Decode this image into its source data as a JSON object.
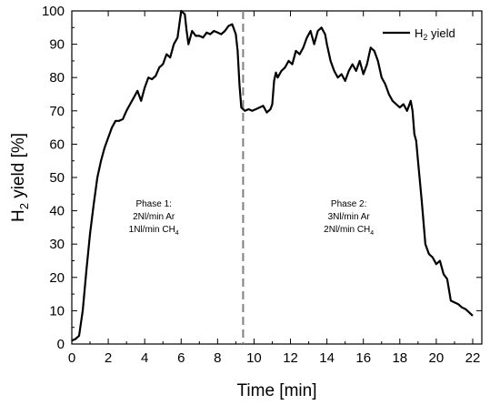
{
  "chart_data": {
    "type": "line",
    "xlabel": "Time [min]",
    "ylabel_main": "H",
    "ylabel_sub": "2",
    "ylabel_rest": " yield [%]",
    "xlim": [
      0,
      22.5
    ],
    "ylim": [
      0,
      100
    ],
    "xticks": [
      0,
      2,
      4,
      6,
      8,
      10,
      12,
      14,
      16,
      18,
      20,
      22
    ],
    "yticks": [
      0,
      10,
      20,
      30,
      40,
      50,
      60,
      70,
      80,
      90,
      100
    ],
    "grid": false,
    "legend": {
      "placement": "top-right",
      "entries": [
        {
          "main": "H",
          "sub": "2",
          "rest": " yield"
        }
      ]
    },
    "divider": {
      "x": 9.4,
      "style": "dashed",
      "color": "#808080"
    },
    "annotations": [
      {
        "x": 4.5,
        "y": 38,
        "lines": [
          {
            "main": "Phase 1:",
            "sub": "",
            "rest": ""
          },
          {
            "main": "2Nl/min Ar",
            "sub": "",
            "rest": ""
          },
          {
            "main": "1Nl/min CH",
            "sub": "4",
            "rest": ""
          }
        ]
      },
      {
        "x": 15.2,
        "y": 38,
        "lines": [
          {
            "main": "Phase 2:",
            "sub": "",
            "rest": ""
          },
          {
            "main": "3Nl/min Ar",
            "sub": "",
            "rest": ""
          },
          {
            "main": "2Nl/min CH",
            "sub": "4",
            "rest": ""
          }
        ]
      }
    ],
    "series": [
      {
        "name": "H2 yield",
        "color": "#000000",
        "points": [
          [
            0.0,
            1.0
          ],
          [
            0.2,
            1.5
          ],
          [
            0.4,
            2.5
          ],
          [
            0.6,
            10
          ],
          [
            0.8,
            22
          ],
          [
            1.0,
            33
          ],
          [
            1.2,
            42
          ],
          [
            1.4,
            50
          ],
          [
            1.6,
            55
          ],
          [
            1.8,
            59
          ],
          [
            2.0,
            62
          ],
          [
            2.2,
            65
          ],
          [
            2.4,
            67
          ],
          [
            2.6,
            67
          ],
          [
            2.8,
            67.5
          ],
          [
            3.0,
            70
          ],
          [
            3.2,
            72
          ],
          [
            3.4,
            74
          ],
          [
            3.6,
            76
          ],
          [
            3.8,
            73
          ],
          [
            4.0,
            77
          ],
          [
            4.2,
            80
          ],
          [
            4.4,
            79.5
          ],
          [
            4.6,
            80.5
          ],
          [
            4.8,
            83
          ],
          [
            5.0,
            84
          ],
          [
            5.2,
            87
          ],
          [
            5.4,
            86
          ],
          [
            5.6,
            90
          ],
          [
            5.8,
            92
          ],
          [
            6.0,
            100
          ],
          [
            6.2,
            99
          ],
          [
            6.3,
            94
          ],
          [
            6.4,
            90
          ],
          [
            6.6,
            94
          ],
          [
            6.8,
            92.5
          ],
          [
            7.0,
            92.5
          ],
          [
            7.2,
            92
          ],
          [
            7.4,
            93.5
          ],
          [
            7.6,
            93
          ],
          [
            7.8,
            94
          ],
          [
            8.0,
            93.5
          ],
          [
            8.2,
            93
          ],
          [
            8.4,
            94
          ],
          [
            8.6,
            95.5
          ],
          [
            8.8,
            96
          ],
          [
            9.0,
            93
          ],
          [
            9.1,
            88
          ],
          [
            9.2,
            78
          ],
          [
            9.3,
            71
          ],
          [
            9.5,
            70
          ],
          [
            9.7,
            70.5
          ],
          [
            9.9,
            70
          ],
          [
            10.1,
            70.5
          ],
          [
            10.3,
            71
          ],
          [
            10.5,
            71.5
          ],
          [
            10.7,
            69.5
          ],
          [
            10.9,
            70.5
          ],
          [
            11.0,
            72
          ],
          [
            11.1,
            79
          ],
          [
            11.2,
            81.5
          ],
          [
            11.3,
            80
          ],
          [
            11.5,
            82
          ],
          [
            11.7,
            83
          ],
          [
            11.9,
            85
          ],
          [
            12.1,
            84
          ],
          [
            12.3,
            88
          ],
          [
            12.5,
            87
          ],
          [
            12.7,
            89
          ],
          [
            12.9,
            92
          ],
          [
            13.1,
            94
          ],
          [
            13.3,
            90
          ],
          [
            13.5,
            94
          ],
          [
            13.7,
            95
          ],
          [
            13.9,
            93
          ],
          [
            14.0,
            90
          ],
          [
            14.2,
            85
          ],
          [
            14.4,
            82
          ],
          [
            14.6,
            80
          ],
          [
            14.8,
            81
          ],
          [
            15.0,
            79
          ],
          [
            15.2,
            82
          ],
          [
            15.4,
            84
          ],
          [
            15.6,
            82
          ],
          [
            15.8,
            85
          ],
          [
            16.0,
            81
          ],
          [
            16.2,
            84
          ],
          [
            16.4,
            89
          ],
          [
            16.6,
            88
          ],
          [
            16.8,
            85
          ],
          [
            17.0,
            80
          ],
          [
            17.2,
            78
          ],
          [
            17.4,
            75
          ],
          [
            17.6,
            73
          ],
          [
            17.8,
            72
          ],
          [
            18.0,
            71
          ],
          [
            18.2,
            72
          ],
          [
            18.4,
            70
          ],
          [
            18.6,
            73
          ],
          [
            18.7,
            70
          ],
          [
            18.8,
            63
          ],
          [
            18.9,
            61
          ],
          [
            19.0,
            55
          ],
          [
            19.2,
            43
          ],
          [
            19.4,
            30
          ],
          [
            19.6,
            27
          ],
          [
            19.8,
            26
          ],
          [
            20.0,
            24
          ],
          [
            20.2,
            25
          ],
          [
            20.4,
            21
          ],
          [
            20.6,
            19.5
          ],
          [
            20.8,
            13
          ],
          [
            21.0,
            12.5
          ],
          [
            21.2,
            12
          ],
          [
            21.4,
            11
          ],
          [
            21.6,
            10.5
          ],
          [
            21.8,
            9.5
          ],
          [
            22.0,
            8.5
          ]
        ]
      }
    ]
  }
}
